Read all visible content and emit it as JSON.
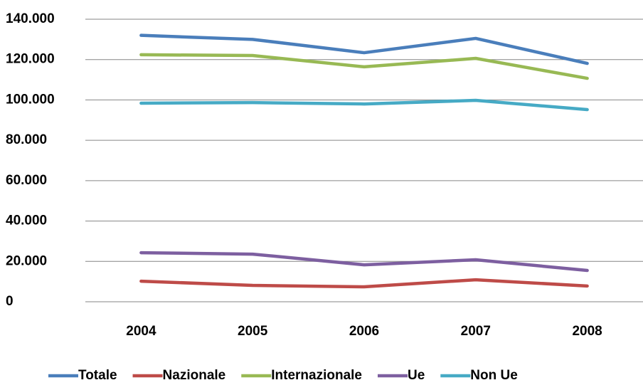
{
  "chart_data": {
    "type": "line",
    "categories": [
      "2004",
      "2005",
      "2006",
      "2007",
      "2008"
    ],
    "series": [
      {
        "name": "Totale",
        "color": "#4a7ebb",
        "values": [
          132000,
          130000,
          123400,
          130500,
          118100
        ]
      },
      {
        "name": "Nazionale",
        "color": "#be4b48",
        "values": [
          10200,
          8100,
          7400,
          10900,
          7800
        ]
      },
      {
        "name": "Internazionale",
        "color": "#98b954",
        "values": [
          122400,
          122000,
          116400,
          120600,
          110700
        ]
      },
      {
        "name": "Ue",
        "color": "#7d5fa0",
        "values": [
          24300,
          23600,
          18300,
          20800,
          15500
        ]
      },
      {
        "name": "Non Ue",
        "color": "#46aac5",
        "values": [
          98400,
          98700,
          98000,
          99800,
          95200
        ]
      }
    ],
    "ylim": [
      0,
      140000
    ],
    "yticks": [
      0,
      {
        "value": 20000,
        "label": "20.000"
      },
      {
        "value": 40000,
        "label": "40.000"
      },
      {
        "value": 60000,
        "label": "60.000"
      },
      {
        "value": 80000,
        "label": "80.000"
      },
      {
        "value": 100000,
        "label": "100.000"
      },
      {
        "value": 120000,
        "label": "120.000"
      },
      {
        "value": 140000,
        "label": "140.000"
      }
    ],
    "grid": true,
    "legend": "bottom"
  }
}
